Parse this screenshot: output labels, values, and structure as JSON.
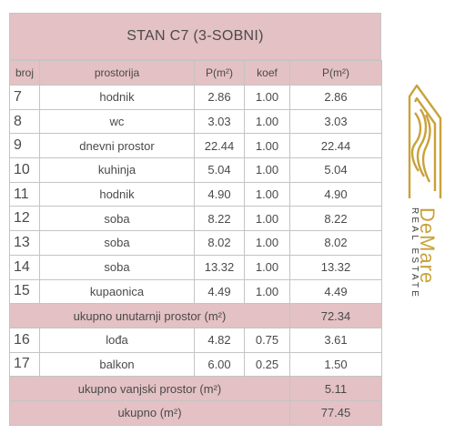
{
  "title": "STAN C7 (3-SOBNI)",
  "table": {
    "headers": {
      "num": "broj",
      "room": "prostorija",
      "area": "P(m²)",
      "coef": "koef",
      "weighted": "P(m²)"
    },
    "rows": [
      {
        "num": "7",
        "room": "hodnik",
        "area": "2.86",
        "coef": "1.00",
        "weighted": "2.86"
      },
      {
        "num": "8",
        "room": "wc",
        "area": "3.03",
        "coef": "1.00",
        "weighted": "3.03"
      },
      {
        "num": "9",
        "room": "dnevni prostor",
        "area": "22.44",
        "coef": "1.00",
        "weighted": "22.44"
      },
      {
        "num": "10",
        "room": "kuhinja",
        "area": "5.04",
        "coef": "1.00",
        "weighted": "5.04"
      },
      {
        "num": "11",
        "room": "hodnik",
        "area": "4.90",
        "coef": "1.00",
        "weighted": "4.90"
      },
      {
        "num": "12",
        "room": "soba",
        "area": "8.22",
        "coef": "1.00",
        "weighted": "8.22"
      },
      {
        "num": "13",
        "room": "soba",
        "area": "8.02",
        "coef": "1.00",
        "weighted": "8.02"
      },
      {
        "num": "14",
        "room": "soba",
        "area": "13.32",
        "coef": "1.00",
        "weighted": "13.32"
      },
      {
        "num": "15",
        "room": "kupaonica",
        "area": "4.49",
        "coef": "1.00",
        "weighted": "4.49"
      }
    ],
    "interior_total": {
      "label": "ukupno unutarnji prostor (m²)",
      "value": "72.34"
    },
    "exterior_rows": [
      {
        "num": "16",
        "room": "lođa",
        "area": "4.82",
        "coef": "0.75",
        "weighted": "3.61"
      },
      {
        "num": "17",
        "room": "balkon",
        "area": "6.00",
        "coef": "0.25",
        "weighted": "1.50"
      }
    ],
    "exterior_total": {
      "label": "ukupno vanjski prostor (m²)",
      "value": "5.11"
    },
    "grand_total": {
      "label": "ukupno (m²)",
      "value": "77.45"
    }
  },
  "brand": {
    "name": "DeMare",
    "tagline": "REAL ESTATE",
    "gold_color": "#c9a23a",
    "logo_icon": "house-wave-icon"
  },
  "colors": {
    "header_fill": "#e3c1c4",
    "grid_line": "#c4c4c4"
  }
}
